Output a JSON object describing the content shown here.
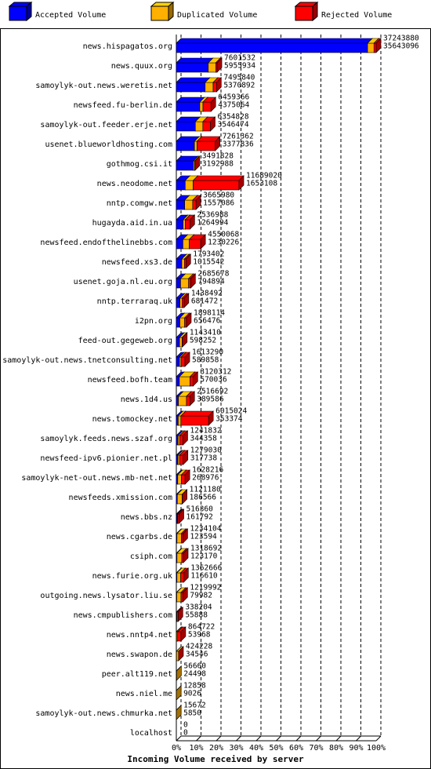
{
  "chart_data": {
    "type": "stacked-bar-3d",
    "orientation": "horizontal",
    "title": "Incoming Volume received by server",
    "categories": [
      "news.hispagatos.org",
      "news.quux.org",
      "samoylyk-out.news.weretis.net",
      "newsfeed.fu-berlin.de",
      "samoylyk-out.feeder.erje.net",
      "usenet.blueworldhosting.com",
      "gothmog.csi.it",
      "news.neodome.net",
      "nntp.comgw.net",
      "hugayda.aid.in.ua",
      "newsfeed.endofthelinebbs.com",
      "newsfeed.xs3.de",
      "usenet.goja.nl.eu.org",
      "nntp.terraraq.uk",
      "i2pn.org",
      "feed-out.gegeweb.org",
      "samoylyk-out.news.tnetconsulting.net",
      "newsfeed.bofh.team",
      "news.1d4.us",
      "news.tomockey.net",
      "samoylyk.feeds.news.szaf.org",
      "newsfeed-ipv6.pionier.net.pl",
      "samoylyk-net-out.news.mb-net.net",
      "newsfeeds.xmission.com",
      "news.bbs.nz",
      "news.cgarbs.de",
      "csiph.com",
      "news.furie.org.uk",
      "outgoing.news.lysator.liu.se",
      "news.cmpublishers.com",
      "news.nntp4.net",
      "news.swapon.de",
      "peer.alt119.net",
      "news.niel.me",
      "samoylyk-out.news.chmurka.net",
      "localhost"
    ],
    "totals": [
      37243880,
      7601532,
      7495840,
      6459366,
      6354828,
      7261362,
      3491828,
      11689020,
      3665980,
      2536988,
      4550068,
      1793402,
      2685678,
      1438492,
      1898114,
      1143410,
      1613290,
      3120312,
      2516692,
      6015024,
      1241832,
      1279030,
      1628216,
      1121180,
      516360,
      1234104,
      1318692,
      1362666,
      1219992,
      338204,
      864722,
      424228,
      56660,
      12858,
      15672,
      0
    ],
    "series": [
      {
        "name": "Accepted Volume",
        "color": "#0000ff",
        "values": [
          35643096,
          5955934,
          5370892,
          4375064,
          3546474,
          3377836,
          3192988,
          1653108,
          1557086,
          1264994,
          1230226,
          1015542,
          794894,
          681472,
          656476,
          598252,
          589858,
          570036,
          389586,
          353374,
          344358,
          317738,
          268976,
          186566,
          161792,
          123594,
          123170,
          116610,
          79982,
          55888,
          53968,
          34546,
          24498,
          9026,
          5850,
          0
        ]
      },
      {
        "name": "Duplicated Volume",
        "color": "#ffb000",
        "values": [
          1200000,
          1400000,
          1500000,
          600000,
          1400000,
          500000,
          250000,
          1500000,
          1500000,
          400000,
          1200000,
          500000,
          1500000,
          400000,
          900000,
          500000,
          300000,
          2000000,
          1500000,
          500000,
          300000,
          300000,
          700000,
          900000,
          100000,
          800000,
          900000,
          700000,
          800000,
          50000,
          200000,
          380000,
          32162,
          3832,
          9822,
          0
        ]
      },
      {
        "name": "Rejected Volume",
        "color": "#ff0000",
        "values": [
          400784,
          245598,
          624948,
          1484302,
          1408354,
          3383526,
          48840,
          8535912,
          608894,
          871994,
          2119842,
          277860,
          390784,
          357020,
          341638,
          45158,
          723432,
          550276,
          627106,
          5161650,
          597474,
          661292,
          659240,
          34614,
          254568,
          310510,
          295522,
          546056,
          340010,
          232316,
          610754,
          9682,
          0,
          0,
          0,
          0
        ]
      }
    ],
    "xlim": [
      0,
      37243880
    ],
    "xticks": [
      {
        "value": 0,
        "label": "0%"
      },
      {
        "value": 3724388,
        "label": "10%"
      },
      {
        "value": 7448776,
        "label": "20%"
      },
      {
        "value": 11173164,
        "label": "30%"
      },
      {
        "value": 14897552,
        "label": "40%"
      },
      {
        "value": 18621940,
        "label": "50%"
      },
      {
        "value": 22346328,
        "label": "60%"
      },
      {
        "value": 26070716,
        "label": "70%"
      },
      {
        "value": 29795104,
        "label": "80%"
      },
      {
        "value": 33519492,
        "label": "90%"
      },
      {
        "value": 37243880,
        "label": "100%"
      }
    ],
    "grid": true
  }
}
